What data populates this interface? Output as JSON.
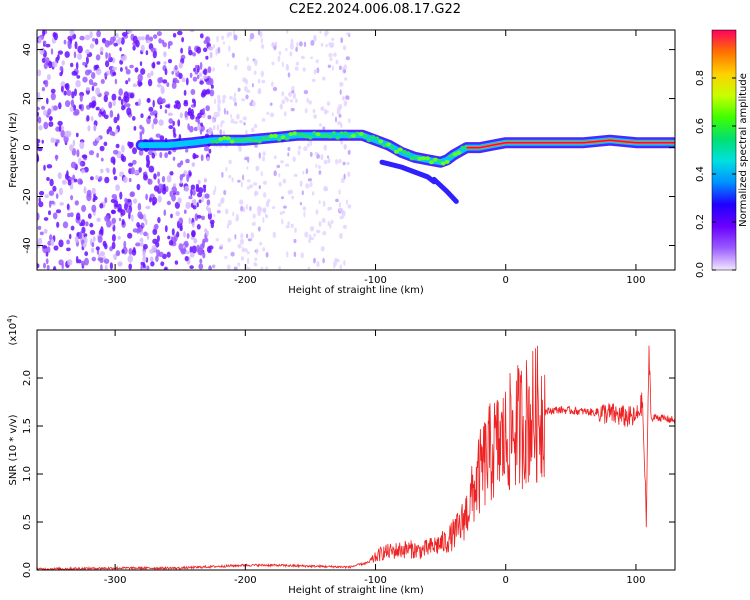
{
  "title": "C2E2.2024.006.08.17.G22",
  "chart_data": [
    {
      "type": "heatmap",
      "xlabel": "Height of straight line (km)",
      "ylabel": "Frequency (Hz)",
      "xlim": [
        -360,
        130
      ],
      "ylim": [
        -50,
        48
      ],
      "xticks": [
        -300,
        -200,
        -100,
        0,
        100
      ],
      "yticks": [
        -40,
        -20,
        0,
        20,
        40
      ],
      "colorbar": {
        "label": "Normalized spectral amplitude",
        "range": [
          0.0,
          1.0
        ],
        "ticks": [
          "0.0",
          "0.2",
          "0.4",
          "0.6",
          "0.8"
        ],
        "colors": [
          "#f2e8ff",
          "#9b5cff",
          "#6a00ff",
          "#1f00ff",
          "#0090ff",
          "#00e0e0",
          "#00e070",
          "#40ff00",
          "#c8ff00",
          "#ffd000",
          "#ff7000",
          "#ff0060"
        ]
      },
      "ridge": {
        "x": [
          -280,
          -260,
          -240,
          -225,
          -200,
          -180,
          -160,
          -140,
          -120,
          -110,
          -100,
          -90,
          -80,
          -70,
          -60,
          -50,
          -45,
          -40,
          -30,
          -20,
          -10,
          0,
          20,
          40,
          60,
          80,
          100,
          110,
          130
        ],
        "y": [
          1,
          1,
          2,
          3,
          3,
          4,
          5,
          5,
          5,
          5,
          3,
          1,
          -2,
          -4,
          -5,
          -6,
          -5,
          -3,
          0,
          0,
          1,
          2,
          2,
          2,
          2,
          3,
          2,
          2,
          2
        ]
      },
      "tracks": [
        {
          "x": [
            -95,
            -80,
            -70,
            -60,
            -55
          ],
          "y": [
            -6,
            -8,
            -10,
            -12,
            -14
          ]
        },
        {
          "x": [
            -55,
            -45,
            -38
          ],
          "y": [
            -13,
            -18,
            -22
          ]
        }
      ],
      "noise_region": {
        "x": [
          -360,
          -225
        ],
        "y": [
          -50,
          48
        ],
        "level": "high"
      },
      "scatter_region": {
        "x": [
          -225,
          -120
        ],
        "y": [
          -50,
          48
        ],
        "level": "low"
      }
    },
    {
      "type": "line",
      "xlabel": "Height of straight line (km)",
      "ylabel": "SNR (10 * v/v)",
      "yscale_label": "(x10",
      "yscale_exp": "4",
      "xlim": [
        -360,
        130
      ],
      "ylim": [
        0,
        2.5
      ],
      "xticks": [
        -300,
        -200,
        -100,
        0,
        100
      ],
      "yticks": [
        "0.0",
        "0.5",
        "1.0",
        "1.5",
        "2.0"
      ],
      "color": "#ee2222",
      "x": [
        -360,
        -300,
        -250,
        -200,
        -180,
        -150,
        -120,
        -105,
        -95,
        -85,
        -75,
        -65,
        -55,
        -45,
        -35,
        -30,
        -25,
        -20,
        -15,
        -10,
        -5,
        0,
        5,
        10,
        20,
        30,
        40,
        50,
        60,
        70,
        80,
        90,
        100,
        105,
        108,
        110,
        112,
        115,
        120,
        130
      ],
      "y": [
        0.01,
        0.02,
        0.02,
        0.05,
        0.05,
        0.04,
        0.03,
        0.08,
        0.18,
        0.2,
        0.22,
        0.2,
        0.25,
        0.3,
        0.45,
        0.6,
        0.8,
        1.0,
        1.15,
        1.25,
        1.3,
        1.35,
        1.45,
        1.5,
        1.6,
        1.65,
        1.67,
        1.66,
        1.65,
        1.64,
        1.63,
        1.6,
        1.58,
        1.75,
        0.5,
        2.3,
        1.55,
        1.6,
        1.58,
        1.56
      ]
    }
  ]
}
